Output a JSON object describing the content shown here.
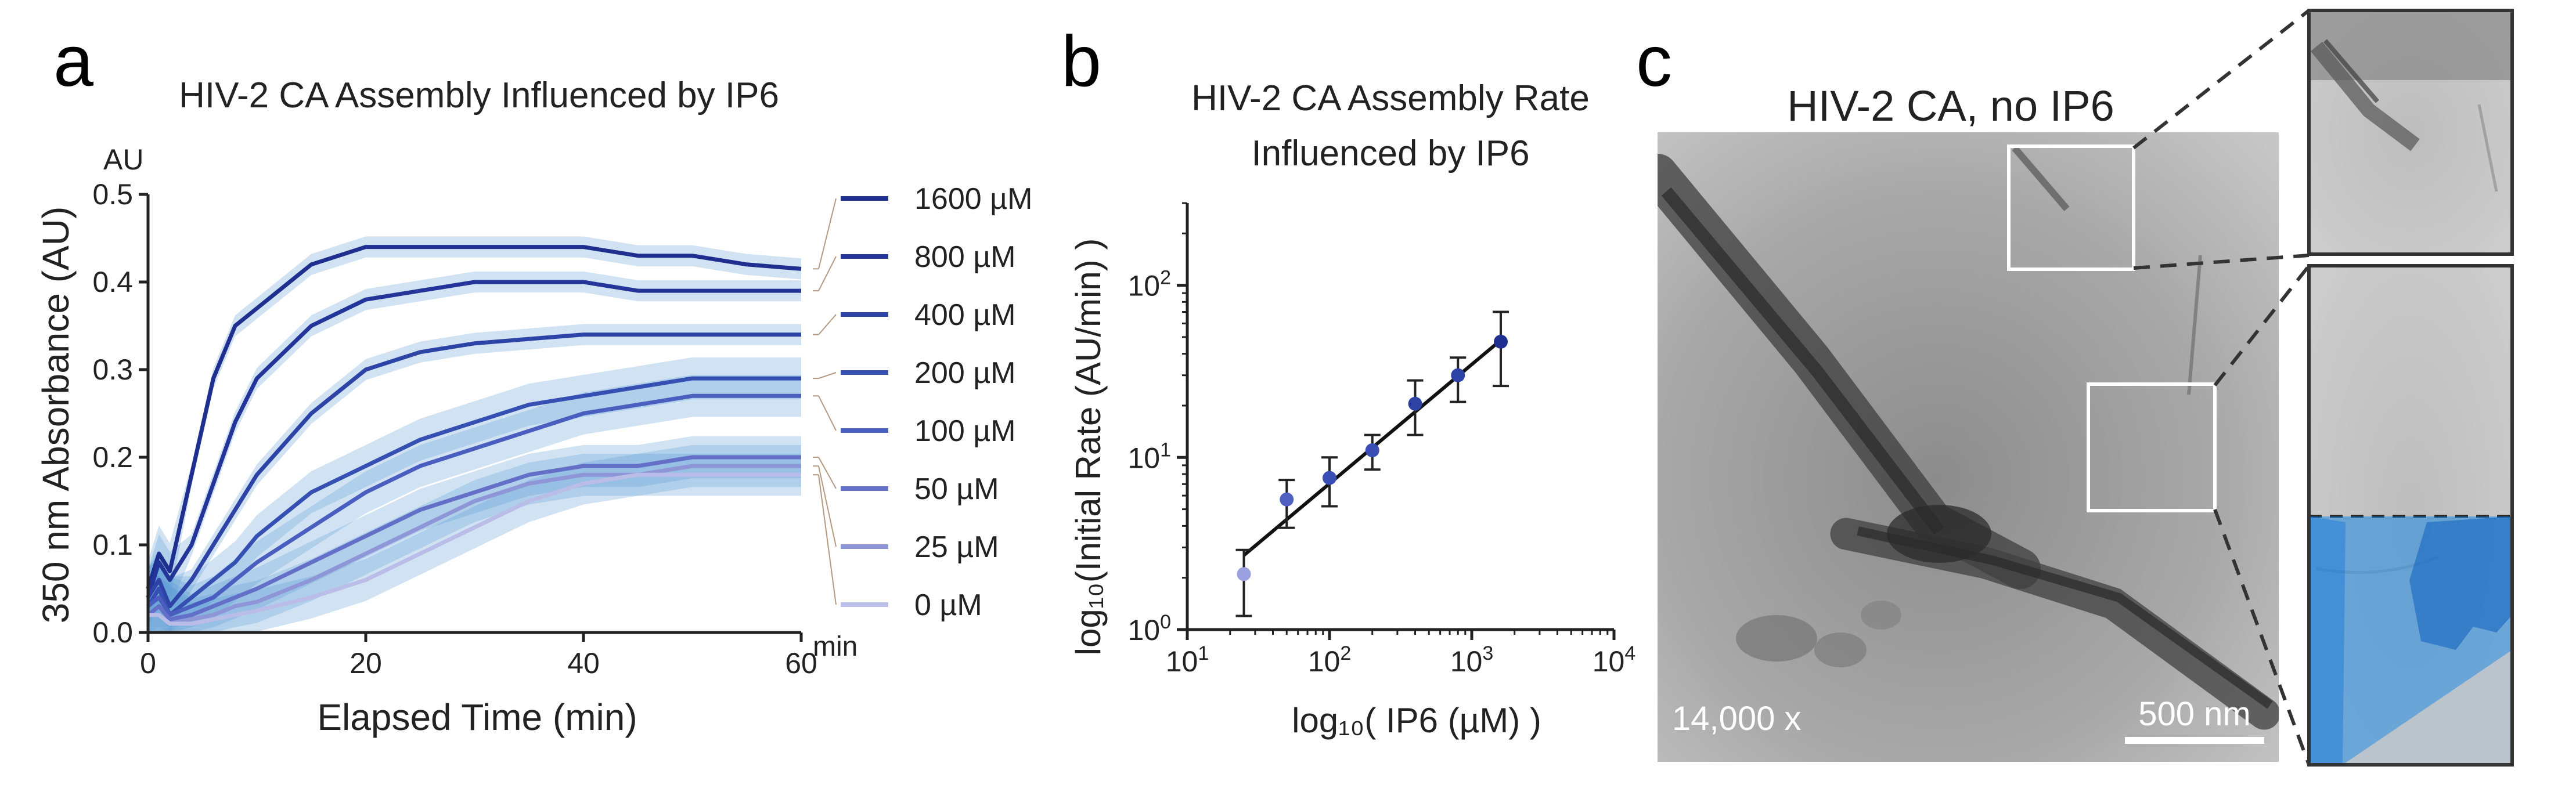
{
  "colors": {
    "c1600": "#1f2f8f",
    "c800": "#24359a",
    "c400": "#2d44a6",
    "c200": "#3550b2",
    "c100": "#4a5ec0",
    "c50": "#6470c8",
    "c25": "#8f96d8",
    "c0": "#b9bde8",
    "band": "#5b9bd5",
    "em_bg": "#a9a9a9",
    "em_dark": "#3a3a3a",
    "overlay": "#1e88e5"
  },
  "panels": {
    "a": {
      "letter": "a"
    },
    "b": {
      "letter": "b"
    },
    "c": {
      "letter": "c",
      "title": "HIV-2 CA, no IP6",
      "magnification": "14,000 x",
      "scalebar_label": "500 nm"
    }
  },
  "chart_data": [
    {
      "type": "line",
      "title": "HIV-2 CA Assembly Influenced by IP6",
      "xlabel": "Elapsed Time (min)",
      "ylabel": "350 nm Absorbance (AU)",
      "x_unit": "min",
      "y_unit": "AU",
      "xlim": [
        0,
        60
      ],
      "ylim": [
        0,
        0.5
      ],
      "x_ticks": [
        "0",
        "20",
        "40",
        "60"
      ],
      "y_ticks": [
        "0.0",
        "0.1",
        "0.2",
        "0.3",
        "0.4",
        "0.5"
      ],
      "legend": [
        "1600 µM",
        "800 µM",
        "400 µM",
        "200 µM",
        "100 µM",
        "50 µM",
        "25 µM",
        "0 µM"
      ],
      "legend_position": "right",
      "x": [
        0,
        1,
        2,
        4,
        6,
        8,
        10,
        15,
        20,
        25,
        30,
        35,
        40,
        45,
        50,
        55,
        60
      ],
      "series": [
        {
          "name": "1600 µM",
          "values": [
            0.05,
            0.09,
            0.07,
            0.18,
            0.29,
            0.35,
            0.37,
            0.42,
            0.44,
            0.44,
            0.44,
            0.44,
            0.44,
            0.43,
            0.43,
            0.42,
            0.415
          ]
        },
        {
          "name": "800 µM",
          "values": [
            0.04,
            0.08,
            0.06,
            0.1,
            0.17,
            0.24,
            0.29,
            0.35,
            0.38,
            0.39,
            0.4,
            0.4,
            0.4,
            0.39,
            0.39,
            0.39,
            0.39
          ]
        },
        {
          "name": "400 µM",
          "values": [
            0.04,
            0.06,
            0.03,
            0.06,
            0.1,
            0.14,
            0.18,
            0.25,
            0.3,
            0.32,
            0.33,
            0.335,
            0.34,
            0.34,
            0.34,
            0.34,
            0.34
          ]
        },
        {
          "name": "200 µM",
          "values": [
            0.03,
            0.05,
            0.02,
            0.04,
            0.06,
            0.08,
            0.11,
            0.16,
            0.19,
            0.22,
            0.24,
            0.26,
            0.27,
            0.28,
            0.29,
            0.29,
            0.29
          ]
        },
        {
          "name": "100 µM",
          "values": [
            0.03,
            0.04,
            0.02,
            0.03,
            0.04,
            0.06,
            0.08,
            0.12,
            0.16,
            0.19,
            0.21,
            0.23,
            0.25,
            0.26,
            0.27,
            0.27,
            0.27
          ]
        },
        {
          "name": "50 µM",
          "values": [
            0.02,
            0.03,
            0.015,
            0.02,
            0.03,
            0.04,
            0.05,
            0.08,
            0.11,
            0.14,
            0.16,
            0.18,
            0.19,
            0.19,
            0.2,
            0.2,
            0.2
          ]
        },
        {
          "name": "25 µM",
          "values": [
            0.02,
            0.02,
            0.01,
            0.015,
            0.02,
            0.03,
            0.035,
            0.06,
            0.09,
            0.12,
            0.15,
            0.17,
            0.18,
            0.18,
            0.19,
            0.19,
            0.19
          ]
        },
        {
          "name": "0 µM",
          "values": [
            0.02,
            0.02,
            0.01,
            0.01,
            0.015,
            0.02,
            0.025,
            0.04,
            0.06,
            0.09,
            0.12,
            0.15,
            0.17,
            0.18,
            0.18,
            0.18,
            0.18
          ]
        }
      ]
    },
    {
      "type": "scatter",
      "title": "HIV-2 CA Assembly Rate Influenced by IP6",
      "title_lines": [
        "HIV-2 CA Assembly Rate",
        "Influenced by IP6"
      ],
      "xlabel": "log₁₀( IP6 (µM) )",
      "ylabel": "log₁₀(Initial Rate (AU/min) )",
      "x_scale": "log",
      "y_scale": "log",
      "xlim": [
        10,
        10000
      ],
      "ylim": [
        1,
        300
      ],
      "x_tick_values": [
        10,
        100,
        1000,
        10000
      ],
      "y_tick_values": [
        1,
        10,
        100
      ],
      "x_tick_labels": [
        {
          "base": "10",
          "exp": "1"
        },
        {
          "base": "10",
          "exp": "2"
        },
        {
          "base": "10",
          "exp": "3"
        },
        {
          "base": "10",
          "exp": "4"
        }
      ],
      "y_tick_labels": [
        {
          "base": "10",
          "exp": "0"
        },
        {
          "base": "10",
          "exp": "1"
        },
        {
          "base": "10",
          "exp": "2"
        }
      ],
      "points": [
        {
          "x": 25,
          "y": 2.1,
          "err_low": 1.2,
          "err_high": 2.9
        },
        {
          "x": 50,
          "y": 5.7,
          "err_low": 3.9,
          "err_high": 7.4
        },
        {
          "x": 100,
          "y": 7.6,
          "err_low": 5.2,
          "err_high": 10.0
        },
        {
          "x": 200,
          "y": 11.0,
          "err_low": 8.5,
          "err_high": 13.5
        },
        {
          "x": 400,
          "y": 20.5,
          "err_low": 13.5,
          "err_high": 28.0
        },
        {
          "x": 800,
          "y": 30.0,
          "err_low": 21.0,
          "err_high": 38.0
        },
        {
          "x": 1600,
          "y": 47.0,
          "err_low": 26.0,
          "err_high": 70.0
        }
      ],
      "fit_line": {
        "x": [
          25,
          1600
        ],
        "y": [
          2.7,
          48.0
        ]
      }
    }
  ]
}
